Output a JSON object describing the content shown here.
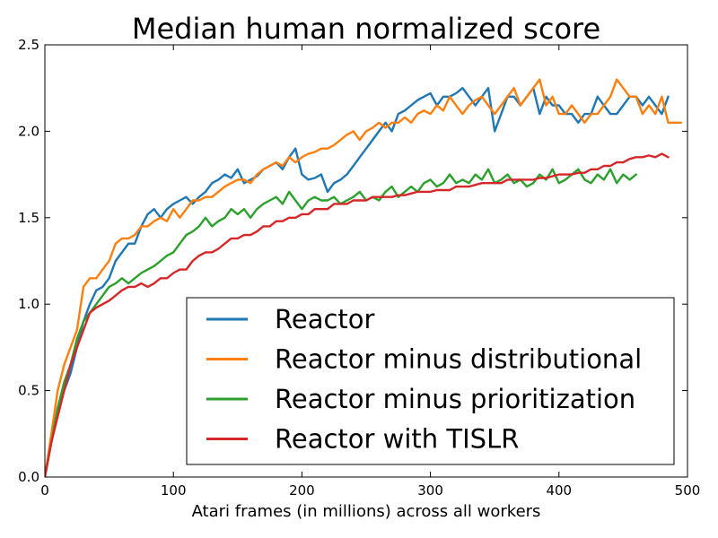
{
  "chart_data": {
    "type": "line",
    "title": "Median human normalized score",
    "xlabel": "Atari frames (in millions) across all workers",
    "ylabel": "",
    "xlim": [
      0,
      500
    ],
    "ylim": [
      0,
      2.5
    ],
    "xticks": [
      0,
      100,
      200,
      300,
      400,
      500
    ],
    "xtick_labels": [
      "0",
      "100",
      "200",
      "300",
      "400",
      "500"
    ],
    "yticks": [
      0,
      0.5,
      1.0,
      1.5,
      2.0,
      2.5
    ],
    "ytick_labels": [
      "0.0",
      "0.5",
      "1.0",
      "1.5",
      "2.0",
      "2.5"
    ],
    "grid": false,
    "legend_position": "lower-right",
    "series": [
      {
        "name": "Reactor",
        "color": "#1f77b4",
        "x": [
          0,
          5,
          10,
          15,
          20,
          25,
          30,
          35,
          40,
          45,
          50,
          55,
          60,
          65,
          70,
          75,
          80,
          85,
          90,
          95,
          100,
          105,
          110,
          115,
          120,
          125,
          130,
          135,
          140,
          145,
          150,
          155,
          160,
          165,
          170,
          175,
          180,
          185,
          190,
          195,
          200,
          205,
          210,
          215,
          220,
          225,
          230,
          235,
          240,
          245,
          250,
          255,
          260,
          265,
          270,
          275,
          280,
          285,
          290,
          295,
          300,
          305,
          310,
          315,
          320,
          325,
          330,
          335,
          340,
          345,
          350,
          355,
          360,
          365,
          370,
          375,
          380,
          385,
          390,
          395,
          400,
          405,
          410,
          415,
          420,
          425,
          430,
          435,
          440,
          445,
          450,
          455,
          460,
          465,
          470,
          475,
          480,
          485
        ],
        "y": [
          0.0,
          0.2,
          0.4,
          0.5,
          0.6,
          0.75,
          0.9,
          1.0,
          1.08,
          1.1,
          1.15,
          1.25,
          1.3,
          1.35,
          1.35,
          1.45,
          1.52,
          1.55,
          1.5,
          1.55,
          1.58,
          1.6,
          1.62,
          1.58,
          1.62,
          1.65,
          1.7,
          1.72,
          1.75,
          1.73,
          1.78,
          1.7,
          1.72,
          1.74,
          1.78,
          1.8,
          1.82,
          1.78,
          1.85,
          1.9,
          1.75,
          1.72,
          1.73,
          1.75,
          1.65,
          1.7,
          1.72,
          1.75,
          1.8,
          1.85,
          1.9,
          1.95,
          2.0,
          2.05,
          2.0,
          2.1,
          2.12,
          2.15,
          2.18,
          2.2,
          2.22,
          2.15,
          2.2,
          2.2,
          2.22,
          2.25,
          2.2,
          2.15,
          2.2,
          2.25,
          2.0,
          2.1,
          2.2,
          2.2,
          2.15,
          2.2,
          2.25,
          2.1,
          2.2,
          2.15,
          2.15,
          2.1,
          2.1,
          2.05,
          2.1,
          2.1,
          2.2,
          2.15,
          2.1,
          2.1,
          2.15,
          2.2,
          2.2,
          2.15,
          2.2,
          2.15,
          2.1,
          2.2
        ]
      },
      {
        "name": "Reactor minus distributional",
        "color": "#ff7f0e",
        "x": [
          0,
          5,
          10,
          15,
          20,
          25,
          30,
          35,
          40,
          45,
          50,
          55,
          60,
          65,
          70,
          75,
          80,
          85,
          90,
          95,
          100,
          105,
          110,
          115,
          120,
          125,
          130,
          135,
          140,
          145,
          150,
          155,
          160,
          165,
          170,
          175,
          180,
          185,
          190,
          195,
          200,
          205,
          210,
          215,
          220,
          225,
          230,
          235,
          240,
          245,
          250,
          255,
          260,
          265,
          270,
          275,
          280,
          285,
          290,
          295,
          300,
          305,
          310,
          315,
          320,
          325,
          330,
          335,
          340,
          345,
          350,
          355,
          360,
          365,
          370,
          375,
          380,
          385,
          390,
          395,
          400,
          405,
          410,
          415,
          420,
          425,
          430,
          435,
          440,
          445,
          450,
          455,
          460,
          465,
          470,
          475,
          480,
          485,
          490,
          495
        ],
        "y": [
          0.0,
          0.25,
          0.5,
          0.65,
          0.75,
          0.85,
          1.1,
          1.15,
          1.15,
          1.2,
          1.25,
          1.35,
          1.38,
          1.38,
          1.4,
          1.45,
          1.45,
          1.48,
          1.5,
          1.48,
          1.55,
          1.5,
          1.55,
          1.6,
          1.6,
          1.62,
          1.62,
          1.65,
          1.68,
          1.7,
          1.72,
          1.72,
          1.7,
          1.75,
          1.78,
          1.8,
          1.82,
          1.8,
          1.85,
          1.82,
          1.85,
          1.87,
          1.88,
          1.9,
          1.9,
          1.92,
          1.95,
          1.98,
          2.0,
          1.95,
          2.0,
          2.02,
          2.05,
          2.02,
          2.05,
          2.05,
          2.08,
          2.05,
          2.1,
          2.12,
          2.1,
          2.15,
          2.12,
          2.2,
          2.15,
          2.1,
          2.15,
          2.18,
          2.2,
          2.15,
          2.1,
          2.15,
          2.2,
          2.25,
          2.15,
          2.2,
          2.25,
          2.3,
          2.15,
          2.2,
          2.1,
          2.1,
          2.15,
          2.1,
          2.05,
          2.1,
          2.1,
          2.15,
          2.2,
          2.3,
          2.25,
          2.2,
          2.2,
          2.1,
          2.15,
          2.1,
          2.2,
          2.05,
          2.05,
          2.05
        ]
      },
      {
        "name": "Reactor minus prioritization",
        "color": "#2ca02c",
        "x": [
          0,
          5,
          10,
          15,
          20,
          25,
          30,
          35,
          40,
          45,
          50,
          55,
          60,
          65,
          70,
          75,
          80,
          85,
          90,
          95,
          100,
          105,
          110,
          115,
          120,
          125,
          130,
          135,
          140,
          145,
          150,
          155,
          160,
          165,
          170,
          175,
          180,
          185,
          190,
          195,
          200,
          205,
          210,
          215,
          220,
          225,
          230,
          235,
          240,
          245,
          250,
          255,
          260,
          265,
          270,
          275,
          280,
          285,
          290,
          295,
          300,
          305,
          310,
          315,
          320,
          325,
          330,
          335,
          340,
          345,
          350,
          355,
          360,
          365,
          370,
          375,
          380,
          385,
          390,
          395,
          400,
          405,
          410,
          415,
          420,
          425,
          430,
          435,
          440,
          445,
          450,
          455,
          460
        ],
        "y": [
          0.0,
          0.2,
          0.4,
          0.55,
          0.65,
          0.8,
          0.9,
          0.95,
          1.0,
          1.05,
          1.1,
          1.12,
          1.15,
          1.12,
          1.15,
          1.18,
          1.2,
          1.22,
          1.25,
          1.28,
          1.3,
          1.35,
          1.4,
          1.42,
          1.45,
          1.5,
          1.45,
          1.48,
          1.5,
          1.55,
          1.52,
          1.55,
          1.5,
          1.55,
          1.58,
          1.6,
          1.62,
          1.58,
          1.65,
          1.6,
          1.55,
          1.6,
          1.62,
          1.6,
          1.6,
          1.62,
          1.58,
          1.6,
          1.62,
          1.65,
          1.6,
          1.62,
          1.6,
          1.65,
          1.68,
          1.62,
          1.65,
          1.68,
          1.65,
          1.7,
          1.72,
          1.68,
          1.7,
          1.75,
          1.7,
          1.72,
          1.7,
          1.75,
          1.72,
          1.78,
          1.7,
          1.72,
          1.75,
          1.7,
          1.72,
          1.68,
          1.7,
          1.75,
          1.72,
          1.78,
          1.7,
          1.72,
          1.75,
          1.78,
          1.72,
          1.7,
          1.75,
          1.72,
          1.78,
          1.7,
          1.75,
          1.72,
          1.75
        ]
      },
      {
        "name": "Reactor with TISLR",
        "color": "#d62728",
        "x": [
          0,
          5,
          10,
          15,
          20,
          25,
          30,
          35,
          40,
          45,
          50,
          55,
          60,
          65,
          70,
          75,
          80,
          85,
          90,
          95,
          100,
          105,
          110,
          115,
          120,
          125,
          130,
          135,
          140,
          145,
          150,
          155,
          160,
          165,
          170,
          175,
          180,
          185,
          190,
          195,
          200,
          205,
          210,
          215,
          220,
          225,
          230,
          235,
          240,
          245,
          250,
          255,
          260,
          265,
          270,
          275,
          280,
          285,
          290,
          295,
          300,
          305,
          310,
          315,
          320,
          325,
          330,
          335,
          340,
          345,
          350,
          355,
          360,
          365,
          370,
          375,
          380,
          385,
          390,
          395,
          400,
          405,
          410,
          415,
          420,
          425,
          430,
          435,
          440,
          445,
          450,
          455,
          460,
          465,
          470,
          475,
          480,
          485
        ],
        "y": [
          0.0,
          0.2,
          0.35,
          0.5,
          0.65,
          0.75,
          0.85,
          0.95,
          0.98,
          1.0,
          1.02,
          1.05,
          1.08,
          1.1,
          1.1,
          1.12,
          1.1,
          1.12,
          1.15,
          1.15,
          1.18,
          1.2,
          1.2,
          1.25,
          1.28,
          1.3,
          1.3,
          1.32,
          1.35,
          1.38,
          1.38,
          1.4,
          1.4,
          1.42,
          1.45,
          1.45,
          1.48,
          1.48,
          1.5,
          1.5,
          1.52,
          1.52,
          1.55,
          1.55,
          1.55,
          1.58,
          1.58,
          1.58,
          1.6,
          1.6,
          1.6,
          1.62,
          1.62,
          1.62,
          1.62,
          1.63,
          1.63,
          1.64,
          1.65,
          1.65,
          1.65,
          1.66,
          1.66,
          1.66,
          1.68,
          1.68,
          1.68,
          1.69,
          1.7,
          1.7,
          1.7,
          1.7,
          1.72,
          1.72,
          1.72,
          1.72,
          1.72,
          1.73,
          1.73,
          1.74,
          1.75,
          1.75,
          1.75,
          1.76,
          1.76,
          1.78,
          1.78,
          1.8,
          1.8,
          1.82,
          1.82,
          1.84,
          1.85,
          1.85,
          1.86,
          1.85,
          1.87,
          1.85
        ]
      }
    ]
  }
}
